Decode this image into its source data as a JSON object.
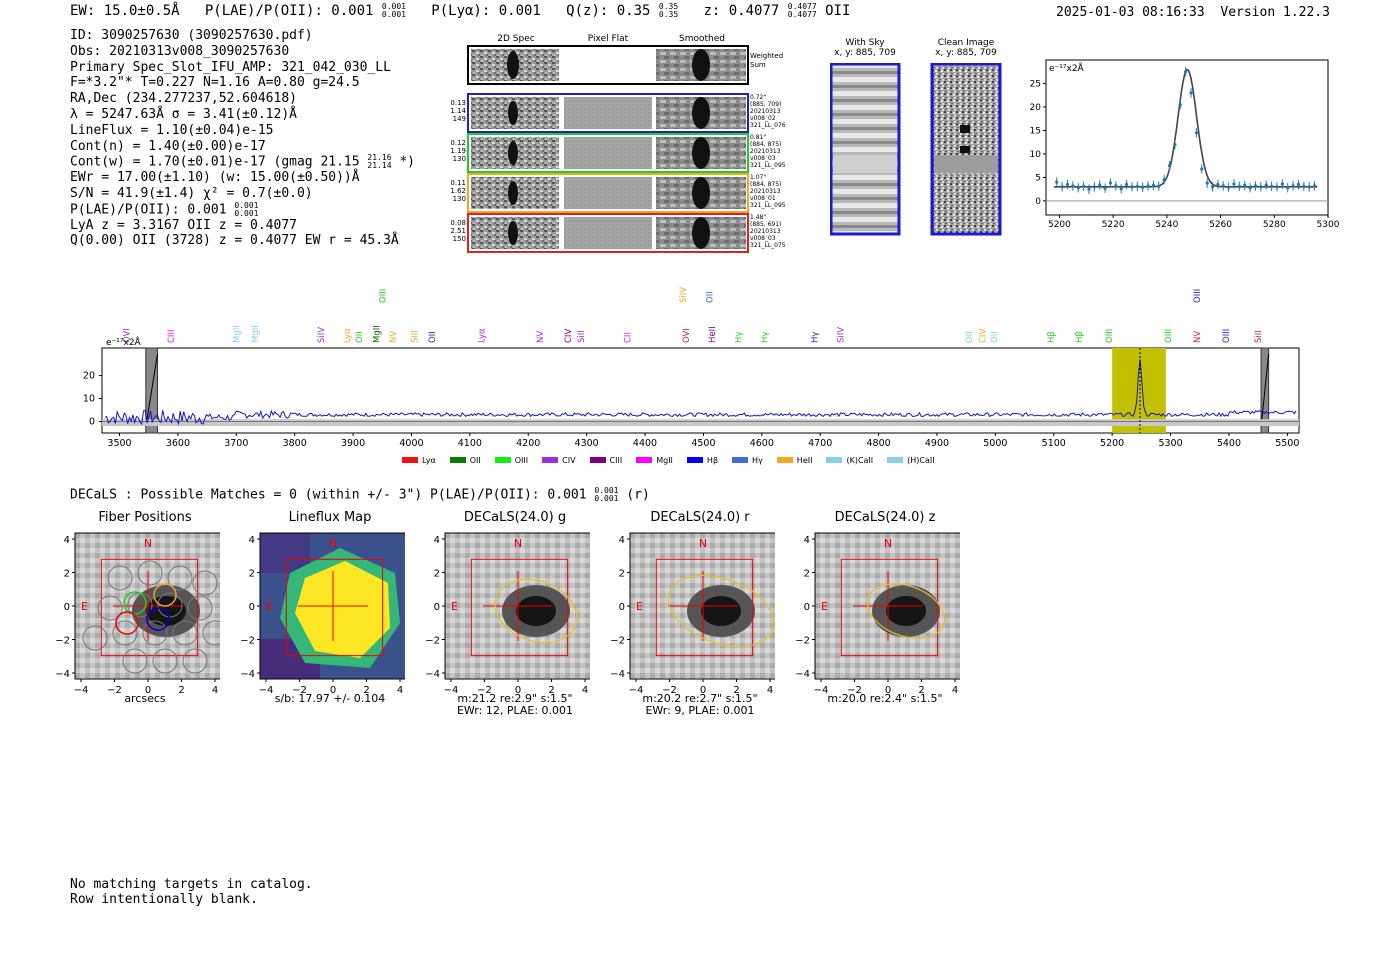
{
  "header": {
    "ew_label": "EW: 15.0±0.5Å",
    "plae_label": "P(LAE)/P(OII): 0.001",
    "plae_up": "0.001",
    "plae_low": "0.001",
    "plya_label": "P(Lyα): 0.001",
    "qz_label": "Q(z): 0.35",
    "qz_up": "0.35",
    "qz_low": "0.35",
    "z_label": "z: 0.4077",
    "z_up": "0.4077",
    "z_low": "0.4077",
    "z_line": "OII",
    "timestamp": "2025-01-03 08:16:33",
    "version": "Version 1.22.3"
  },
  "info": {
    "id": "ID: 3090257630 (3090257630.pdf)",
    "obs": "Obs: 20210313v008_3090257630",
    "primary": "Primary Spec_Slot_IFU_AMP: 321_042_030_LL",
    "params": "F=*3.2\"*  T=0.227  N=1.16  A=0.80  g=24.5",
    "radec": "RA,Dec (234.277237,52.604618)",
    "lambda": "λ = 5247.63Å  σ = 3.41(±0.12)Å",
    "lineflux": "LineFlux = 1.10(±0.04)e-15",
    "contn": "Cont(n) = 1.40(±0.00)e-17",
    "contw": "Cont(w) = 1.70(±0.01)e-17 (gmag 21.15",
    "contw_up": "21.16",
    "contw_low": "21.14",
    "contw_end": "*)",
    "ewr": "EWr = 17.00(±1.10)  (w: 15.00(±0.50))Å",
    "sn": "S/N = 41.9(±1.4)  χ² = 0.7(±0.0)",
    "plae": "P(LAE)/P(OII): 0.001",
    "plae_up": "0.001",
    "plae_low": "0.001",
    "lya": "LyA z = 3.3167  OII z = 0.4077",
    "q": "Q(0.00) OII (3728) z = 0.4077  EW r = 45.3Å"
  },
  "stamps": {
    "col_2d": "2D Spec",
    "col_flat": "Pixel Flat",
    "col_smooth": "Smoothed",
    "weighted": "Weighted Sum",
    "rows": [
      {
        "w1": "0.13",
        "w2": "1.14",
        "w3": "149",
        "sep": "0.72\"",
        "xy": "(885, 709)",
        "date": "20210313",
        "obs": "v008_02",
        "amp": "321_LL_076",
        "color": "#1f1fc8"
      },
      {
        "w1": "0.12",
        "w2": "1.19",
        "w3": "130",
        "sep": "0.81\"",
        "xy": "(884, 875)",
        "date": "20210313",
        "obs": "v008_03",
        "amp": "321_LL_095",
        "color": "#22cc22"
      },
      {
        "w1": "0.11",
        "w2": "1.62",
        "w3": "130",
        "sep": "1.07\"",
        "xy": "(884, 875)",
        "date": "20210313",
        "obs": "v008_01",
        "amp": "321_LL_095",
        "color": "#f5a623"
      },
      {
        "w1": "0.08",
        "w2": "2.51",
        "w3": "150",
        "sep": "1.48\"",
        "xy": "(885, 691)",
        "date": "20210313",
        "obs": "v008_03",
        "amp": "321_LL_075",
        "color": "#e02020"
      }
    ]
  },
  "sky": {
    "with_sky_title": "With Sky",
    "with_sky_xy": "x, y: 885, 709",
    "clean_title": "Clean Image",
    "clean_xy": "x, y: 885, 709"
  },
  "zoom_chart": {
    "units": "e⁻¹⁷x2Å",
    "x_ticks": [
      "5200",
      "5220",
      "5240",
      "5260",
      "5280",
      "5300"
    ],
    "y_ticks": [
      "0",
      "5",
      "10",
      "15",
      "20",
      "25"
    ]
  },
  "spectrum": {
    "units": "e⁻¹⁷x2Å",
    "x_ticks": [
      "3500",
      "3600",
      "3700",
      "3800",
      "3900",
      "4000",
      "4100",
      "4200",
      "4300",
      "4400",
      "4500",
      "4600",
      "4700",
      "4800",
      "4900",
      "5000",
      "5100",
      "5200",
      "5300",
      "5400",
      "5500"
    ],
    "y_ticks": [
      "0",
      "10",
      "20"
    ],
    "lines": [
      {
        "name": "OVI",
        "x": 3512,
        "color": "#9b30d8",
        "row": 1
      },
      {
        "name": "CIII",
        "x": 3588,
        "color": "#e020e0",
        "row": 1
      },
      {
        "name": "MgII",
        "x": 3700,
        "color": "#87ceeb",
        "row": 1
      },
      {
        "name": "MgII",
        "x": 3732,
        "color": "#87ceeb",
        "row": 1
      },
      {
        "name": "SiIV",
        "x": 3845,
        "color": "#9b30d8",
        "row": 1
      },
      {
        "name": "Lyα",
        "x": 3890,
        "color": "#f5a623",
        "row": 1
      },
      {
        "name": "OII",
        "x": 3910,
        "color": "#22cc22",
        "row": 1
      },
      {
        "name": "MgII",
        "x": 3940,
        "color": "#006400",
        "row": 1
      },
      {
        "name": "OIII",
        "x": 3950,
        "color": "#22cc22",
        "row": 0
      },
      {
        "name": "NV",
        "x": 3968,
        "color": "#f5a623",
        "row": 1
      },
      {
        "name": "SiII",
        "x": 4005,
        "color": "#f5a623",
        "row": 1
      },
      {
        "name": "OII",
        "x": 4035,
        "color": "#1f1fc8",
        "row": 1
      },
      {
        "name": "Lyα",
        "x": 4120,
        "color": "#9b30d8",
        "row": 1
      },
      {
        "name": "NV",
        "x": 4220,
        "color": "#9b30d8",
        "row": 1
      },
      {
        "name": "CIV",
        "x": 4268,
        "color": "#800080",
        "row": 1
      },
      {
        "name": "SiII",
        "x": 4290,
        "color": "#9b30d8",
        "row": 1
      },
      {
        "name": "CII",
        "x": 4370,
        "color": "#e020e0",
        "row": 1
      },
      {
        "name": "SiIV",
        "x": 4465,
        "color": "#f5a623",
        "row": 0
      },
      {
        "name": "OVI",
        "x": 4470,
        "color": "#e02020",
        "row": 1
      },
      {
        "name": "OII",
        "x": 4510,
        "color": "#4169e1",
        "row": 0
      },
      {
        "name": "HeII",
        "x": 4515,
        "color": "#800080",
        "row": 1
      },
      {
        "name": "Hγ",
        "x": 4560,
        "color": "#22cc22",
        "row": 1
      },
      {
        "name": "Hγ",
        "x": 4605,
        "color": "#22cc22",
        "row": 1
      },
      {
        "name": "Hγ",
        "x": 4690,
        "color": "#1f1fc8",
        "row": 1
      },
      {
        "name": "SiIV",
        "x": 4735,
        "color": "#9b30d8",
        "row": 1
      },
      {
        "name": "OII",
        "x": 4955,
        "color": "#87ceeb",
        "row": 1
      },
      {
        "name": "CIV",
        "x": 4978,
        "color": "#f5a623",
        "row": 1
      },
      {
        "name": "OII",
        "x": 4998,
        "color": "#87ceeb",
        "row": 1
      },
      {
        "name": "Hβ",
        "x": 5095,
        "color": "#22cc22",
        "row": 1
      },
      {
        "name": "Hβ",
        "x": 5143,
        "color": "#22cc22",
        "row": 1
      },
      {
        "name": "OIII",
        "x": 5195,
        "color": "#22cc22",
        "row": 1
      },
      {
        "name": "OIII",
        "x": 5296,
        "color": "#22cc22",
        "row": 1
      },
      {
        "name": "OIII",
        "x": 5345,
        "color": "#1f1fc8",
        "row": 0
      },
      {
        "name": "NV",
        "x": 5345,
        "color": "#e02020",
        "row": 1
      },
      {
        "name": "OIII",
        "x": 5395,
        "color": "#1f1fc8",
        "row": 1
      },
      {
        "name": "SiII",
        "x": 5450,
        "color": "#e02020",
        "row": 1
      }
    ],
    "legend": [
      {
        "label": "Lyα",
        "color": "#ee1111"
      },
      {
        "label": "OII",
        "color": "#0a7a0a"
      },
      {
        "label": "OIII",
        "color": "#11ee11"
      },
      {
        "label": "CIV",
        "color": "#9b30d8"
      },
      {
        "label": "CIII",
        "color": "#800080"
      },
      {
        "label": "MgII",
        "color": "#ff00ff"
      },
      {
        "label": "Hβ",
        "color": "#0000ff"
      },
      {
        "label": "Hγ",
        "color": "#4169e1"
      },
      {
        "label": "HeII",
        "color": "#f5a623"
      },
      {
        "label": "(K)CaII",
        "color": "#87ceeb"
      },
      {
        "label": "(H)CaII",
        "color": "#87ceeb"
      }
    ]
  },
  "chart_data": {
    "type": "line",
    "title": "",
    "xlabel": "",
    "ylabel": "e-17x2Å",
    "xlim": [
      3470,
      5520
    ],
    "ylim": [
      -5,
      32
    ],
    "highlight_window": [
      5200,
      5292
    ],
    "peak_x": 5247.63,
    "peak_y": 26.5,
    "continuum": 3.0,
    "zoom": {
      "xlim": [
        5195,
        5300
      ],
      "ylim": [
        -3,
        30
      ],
      "fit_center": 5247.63,
      "fit_sigma": 3.41,
      "fit_amp": 25,
      "fit_cont": 3,
      "points_x": [
        5199,
        5201,
        5203,
        5205,
        5207,
        5209,
        5211,
        5213,
        5215,
        5217,
        5219,
        5221,
        5223,
        5225,
        5227,
        5229,
        5231,
        5233,
        5235,
        5237,
        5239,
        5241,
        5243,
        5245,
        5247,
        5249,
        5251,
        5253,
        5255,
        5257,
        5259,
        5261,
        5263,
        5265,
        5267,
        5269,
        5271,
        5273,
        5275,
        5277,
        5279,
        5281,
        5283,
        5285,
        5287,
        5289,
        5291,
        5293,
        5295
      ],
      "points_y": [
        4.0,
        3.0,
        3.5,
        3.2,
        2.8,
        3.1,
        2.5,
        3.0,
        3.4,
        2.7,
        3.8,
        3.2,
        2.6,
        3.5,
        3.0,
        3.1,
        2.9,
        3.2,
        3.3,
        3.1,
        4.5,
        7.5,
        12.0,
        20.5,
        27.5,
        23.0,
        14.5,
        6.8,
        3.8,
        3.0,
        3.5,
        3.2,
        2.9,
        3.6,
        3.1,
        3.3,
        2.8,
        3.2,
        3.0,
        3.4,
        3.1,
        3.0,
        3.6,
        2.8,
        3.2,
        3.5,
        3.1,
        3.0,
        3.2
      ]
    }
  },
  "decals": {
    "line": "DECaLS : Possible Matches = 0 (within +/- 3\")  P(LAE)/P(OII): 0.001",
    "line_up": "0.001",
    "line_low": "0.001",
    "line_end": "(r)",
    "cutouts": [
      {
        "title": "Fiber Positions",
        "caption1": "arcsecs",
        "caption2": ""
      },
      {
        "title": "Lineflux Map",
        "caption1": "s/b: 17.97 +/- 0.104",
        "caption2": ""
      },
      {
        "title": "DECaLS(24.0) g",
        "caption1": "m:21.2  re:2.9\"  s:1.5\"",
        "caption2": "EWr: 12, PLAE: 0.001"
      },
      {
        "title": "DECaLS(24.0) r",
        "caption1": "m:20.2  re:2.7\"  s:1.5\"",
        "caption2": "EWr: 9, PLAE: 0.001"
      },
      {
        "title": "DECaLS(24.0) z",
        "caption1": "m:20.0  re:2.4\"  s:1.5\"",
        "caption2": ""
      }
    ],
    "n_label": "N",
    "e_label": "E",
    "ticks": [
      "−4",
      "−2",
      "0",
      "2",
      "4"
    ],
    "yticks": [
      "4",
      "2",
      "0",
      "−2",
      "−4"
    ]
  },
  "footer": {
    "line1": "No matching targets in catalog.",
    "line2": "Row intentionally blank."
  }
}
